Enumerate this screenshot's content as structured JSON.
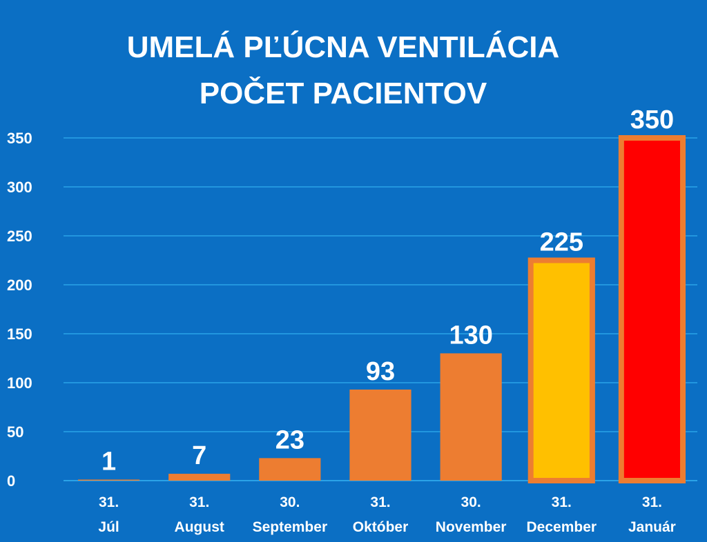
{
  "chart_data": {
    "type": "bar",
    "title_lines": [
      "UMELÁ PĽÚCNA VENTILÁCIA",
      "POČET PACIENTOV"
    ],
    "categories": [
      [
        "31.",
        "Júl"
      ],
      [
        "31.",
        "August"
      ],
      [
        "30.",
        "September"
      ],
      [
        "31.",
        "Október"
      ],
      [
        "30.",
        "November"
      ],
      [
        "31.",
        "December"
      ],
      [
        "31.",
        "Január"
      ]
    ],
    "values": [
      1,
      7,
      23,
      93,
      130,
      225,
      350
    ],
    "data_labels": [
      "1",
      "7",
      "23",
      "93",
      "130",
      "225",
      "350"
    ],
    "bar_colors": [
      "#ed7d31",
      "#ed7d31",
      "#ed7d31",
      "#ed7d31",
      "#ed7d31",
      "#ffc000",
      "#ff0000"
    ],
    "bar_outline_colors": [
      "",
      "",
      "",
      "",
      "",
      "#ed7d31",
      "#ed7d31"
    ],
    "yticks": [
      0,
      50,
      100,
      150,
      200,
      250,
      300,
      350
    ],
    "ylim": [
      0,
      350
    ],
    "grid": true,
    "legend": "none",
    "colors": {
      "background": "#0b6fc4",
      "gridline": "#2ba3e8",
      "text": "#ffffff"
    }
  }
}
